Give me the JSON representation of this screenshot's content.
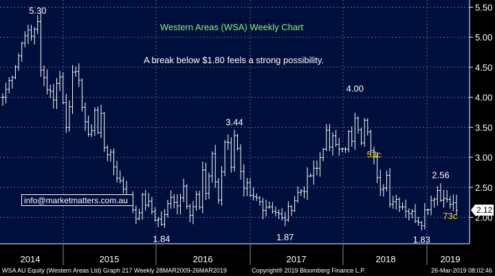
{
  "chart_data": {
    "type": "candlestick",
    "title": "Western Areas (WSA) Weekly Chart",
    "subtitle": "A break below $1.80 feels a strong possibility.",
    "x_labels": [
      "2014",
      "2015",
      "2016",
      "2017",
      "2018",
      "2019"
    ],
    "yticks": [
      "5.50",
      "5.00",
      "4.50",
      "4.00",
      "3.50",
      "3.00",
      "2.50",
      "2.00"
    ],
    "ylim": [
      1.56,
      5.62
    ],
    "grid": true,
    "last_price": "2.12",
    "annotations": [
      {
        "text": "5.30",
        "value": 5.3,
        "week": 11
      },
      {
        "text": "1.84",
        "value": 1.84,
        "week": 50
      },
      {
        "text": "3.44",
        "value": 3.44,
        "week": 73
      },
      {
        "text": "1.87",
        "value": 1.87,
        "week": 89
      },
      {
        "text": "4.00",
        "value": 4.0,
        "week": 111
      },
      {
        "text": "53c",
        "value": 3.05,
        "week": 117
      },
      {
        "text": "1.83",
        "value": 1.83,
        "week": 132
      },
      {
        "text": "2.56",
        "value": 2.56,
        "week": 138
      },
      {
        "text": "73c",
        "value": 2.03,
        "week": 141
      }
    ],
    "waypoints": [
      [
        0,
        4.0
      ],
      [
        3,
        4.4
      ],
      [
        5,
        4.7
      ],
      [
        7,
        5.1
      ],
      [
        9,
        5.0
      ],
      [
        11,
        5.3
      ],
      [
        12,
        4.4
      ],
      [
        14,
        4.2
      ],
      [
        16,
        4.0
      ],
      [
        18,
        4.4
      ],
      [
        19,
        3.9
      ],
      [
        20,
        3.5
      ],
      [
        21,
        3.9
      ],
      [
        22,
        4.5
      ],
      [
        24,
        4.2
      ],
      [
        26,
        3.6
      ],
      [
        27,
        3.3
      ],
      [
        28,
        3.5
      ],
      [
        29,
        3.8
      ],
      [
        30,
        3.4
      ],
      [
        31,
        3.7
      ],
      [
        32,
        3.2
      ],
      [
        34,
        3.0
      ],
      [
        36,
        2.7
      ],
      [
        38,
        2.5
      ],
      [
        40,
        2.3
      ],
      [
        42,
        2.0
      ],
      [
        44,
        2.3
      ],
      [
        46,
        2.2
      ],
      [
        48,
        2.0
      ],
      [
        50,
        1.9
      ],
      [
        51,
        2.0
      ],
      [
        53,
        2.4
      ],
      [
        55,
        2.2
      ],
      [
        57,
        2.6
      ],
      [
        58,
        2.2
      ],
      [
        59,
        2.0
      ],
      [
        61,
        2.3
      ],
      [
        62,
        2.2
      ],
      [
        63,
        2.8
      ],
      [
        64,
        2.4
      ],
      [
        66,
        3.0
      ],
      [
        67,
        2.6
      ],
      [
        68,
        2.3
      ],
      [
        69,
        2.8
      ],
      [
        70,
        3.3
      ],
      [
        71,
        3.2
      ],
      [
        72,
        2.9
      ],
      [
        73,
        3.4
      ],
      [
        74,
        3.1
      ],
      [
        75,
        2.7
      ],
      [
        76,
        2.4
      ],
      [
        77,
        2.5
      ],
      [
        78,
        2.3
      ],
      [
        80,
        2.3
      ],
      [
        82,
        2.2
      ],
      [
        84,
        2.2
      ],
      [
        86,
        2.1
      ],
      [
        88,
        1.95
      ],
      [
        89,
        2.0
      ],
      [
        91,
        2.2
      ],
      [
        93,
        2.4
      ],
      [
        95,
        2.5
      ],
      [
        97,
        2.7
      ],
      [
        99,
        2.8
      ],
      [
        100,
        3.0
      ],
      [
        101,
        3.2
      ],
      [
        102,
        3.4
      ],
      [
        103,
        3.1
      ],
      [
        104,
        3.4
      ],
      [
        105,
        3.3
      ],
      [
        106,
        3.2
      ],
      [
        107,
        3.1
      ],
      [
        108,
        3.1
      ],
      [
        109,
        3.4
      ],
      [
        110,
        3.2
      ],
      [
        111,
        3.7
      ],
      [
        112,
        3.4
      ],
      [
        113,
        3.3
      ],
      [
        114,
        3.7
      ],
      [
        115,
        3.5
      ],
      [
        116,
        3.2
      ],
      [
        117,
        3.0
      ],
      [
        118,
        2.6
      ],
      [
        119,
        2.4
      ],
      [
        121,
        2.7
      ],
      [
        122,
        2.3
      ],
      [
        124,
        2.3
      ],
      [
        126,
        2.2
      ],
      [
        128,
        2.1
      ],
      [
        130,
        2.0
      ],
      [
        132,
        1.95
      ],
      [
        133,
        2.1
      ],
      [
        135,
        2.3
      ],
      [
        137,
        2.45
      ],
      [
        138,
        2.3
      ],
      [
        139,
        2.4
      ],
      [
        140,
        2.25
      ],
      [
        142,
        2.2
      ],
      [
        143,
        2.12
      ]
    ]
  },
  "side_label": "info@marketmatters.com.au",
  "footer": {
    "left": "WSA AU Equity (Western Areas Ltd) Graph 217  Weekly 28MAR2009-26MAR2019",
    "center": "Copyright® 2019 Bloomberg Finance L.P.",
    "right": "26-Mar-2019 08:02:46"
  },
  "colors": {
    "background": "#000e3c",
    "grid": "#5a6a8e",
    "bars": "#ffffff",
    "title": "#7dfc6e",
    "annotation_highlight": "#ffd800",
    "frame": "#ffffff"
  }
}
